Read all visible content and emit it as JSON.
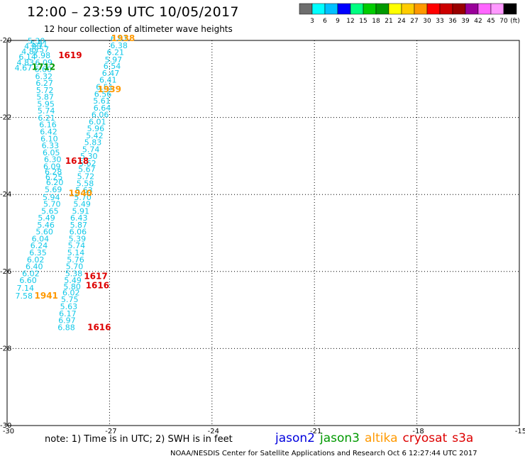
{
  "header": {
    "title": "12:00 – 23:59 UTC 10/05/2017",
    "subtitle": "12 hour collection of altimeter wave heights"
  },
  "colorbar": {
    "colors": [
      "#6e6e6e",
      "#00ffff",
      "#00c0ff",
      "#0000ff",
      "#00ff80",
      "#00cc00",
      "#009900",
      "#ffff00",
      "#ffcc00",
      "#ff9900",
      "#ff0000",
      "#cc0000",
      "#990000",
      "#990099",
      "#ff66ff",
      "#ff99ff",
      "#000000"
    ],
    "labels": [
      "3",
      "6",
      "9",
      "12",
      "15",
      "18",
      "21",
      "24",
      "27",
      "30",
      "33",
      "36",
      "39",
      "42",
      "45",
      "70"
    ],
    "unit": "(ft)"
  },
  "footer": {
    "note": "note:  1) Time is in UTC;  2) SWH is in feet",
    "credit": "NOAA/NESDIS Center for Satellite Applications and Research     Oct  6 12:27:44 UTC 2017"
  },
  "missions": [
    {
      "name": "jason2",
      "color": "#0000dd"
    },
    {
      "name": "jason3",
      "color": "#009900"
    },
    {
      "name": "altika",
      "color": "#ff9900"
    },
    {
      "name": "cryosat",
      "color": "#dd0000"
    },
    {
      "name": "s3a",
      "color": "#dd0000"
    }
  ],
  "chart_data": {
    "type": "scatter",
    "title": "12:00 – 23:59 UTC 10/05/2017",
    "xlim": [
      -30,
      -15
    ],
    "ylim": [
      -30,
      -20
    ],
    "x_ticks": [
      "-30",
      "-27",
      "-24",
      "-21",
      "-18",
      "-15"
    ],
    "y_ticks": [
      "-20",
      "-22",
      "-24",
      "-26",
      "-28",
      "-30"
    ],
    "grid": true,
    "point_color": "#11c8e8",
    "points": [
      {
        "x": -26.97,
        "y": -20.02,
        "label": "6.61"
      },
      {
        "x": -26.98,
        "y": -20.2,
        "label": "6.38"
      },
      {
        "x": -27.08,
        "y": -20.38,
        "label": "6.21"
      },
      {
        "x": -27.14,
        "y": -20.57,
        "label": "5.97"
      },
      {
        "x": -27.18,
        "y": -20.74,
        "label": "6.54"
      },
      {
        "x": -27.22,
        "y": -20.92,
        "label": "6.47"
      },
      {
        "x": -27.3,
        "y": -21.1,
        "label": "6.41"
      },
      {
        "x": -27.4,
        "y": -21.28,
        "label": "6.51"
      },
      {
        "x": -27.45,
        "y": -21.46,
        "label": "6.56"
      },
      {
        "x": -27.48,
        "y": -21.64,
        "label": "5.61"
      },
      {
        "x": -27.47,
        "y": -21.82,
        "label": "6.64"
      },
      {
        "x": -27.53,
        "y": -22.0,
        "label": "6.06"
      },
      {
        "x": -27.61,
        "y": -22.18,
        "label": "6.01"
      },
      {
        "x": -27.66,
        "y": -22.36,
        "label": "5.96"
      },
      {
        "x": -27.69,
        "y": -22.54,
        "label": "5.42"
      },
      {
        "x": -27.74,
        "y": -22.72,
        "label": "5.83"
      },
      {
        "x": -27.8,
        "y": -22.9,
        "label": "5.74"
      },
      {
        "x": -27.86,
        "y": -23.08,
        "label": "5.30"
      },
      {
        "x": -27.9,
        "y": -23.26,
        "label": "5.62"
      },
      {
        "x": -27.92,
        "y": -23.42,
        "label": "5.67"
      },
      {
        "x": -27.95,
        "y": -23.6,
        "label": "5.72"
      },
      {
        "x": -27.97,
        "y": -23.78,
        "label": "5.58"
      },
      {
        "x": -28.0,
        "y": -23.96,
        "label": "5.63"
      },
      {
        "x": -28.04,
        "y": -24.14,
        "label": "5.70"
      },
      {
        "x": -28.06,
        "y": -24.32,
        "label": "5.49"
      },
      {
        "x": -28.1,
        "y": -24.5,
        "label": "5.91"
      },
      {
        "x": -28.15,
        "y": -24.68,
        "label": "6.43"
      },
      {
        "x": -28.16,
        "y": -24.86,
        "label": "5.87"
      },
      {
        "x": -28.18,
        "y": -25.04,
        "label": "6.06"
      },
      {
        "x": -28.2,
        "y": -25.22,
        "label": "5.39"
      },
      {
        "x": -28.22,
        "y": -25.4,
        "label": "5.74"
      },
      {
        "x": -28.24,
        "y": -25.58,
        "label": "5.14"
      },
      {
        "x": -28.25,
        "y": -25.76,
        "label": "5.76"
      },
      {
        "x": -28.28,
        "y": -25.94,
        "label": "5.70"
      },
      {
        "x": -28.3,
        "y": -26.12,
        "label": "5.38"
      },
      {
        "x": -28.33,
        "y": -26.3,
        "label": "5.49"
      },
      {
        "x": -28.35,
        "y": -26.46,
        "label": "5.80"
      },
      {
        "x": -28.38,
        "y": -26.62,
        "label": "6.02"
      },
      {
        "x": -28.42,
        "y": -26.8,
        "label": "5.75"
      },
      {
        "x": -28.45,
        "y": -26.98,
        "label": "5.63"
      },
      {
        "x": -28.48,
        "y": -27.16,
        "label": "6.17"
      },
      {
        "x": -28.5,
        "y": -27.34,
        "label": "6.97"
      },
      {
        "x": -28.52,
        "y": -27.52,
        "label": "6.88"
      },
      {
        "x": -29.4,
        "y": -20.08,
        "label": "5.30"
      },
      {
        "x": -29.5,
        "y": -20.22,
        "label": "4.90"
      },
      {
        "x": -29.58,
        "y": -20.36,
        "label": "4.87"
      },
      {
        "x": -29.66,
        "y": -20.5,
        "label": "6.14"
      },
      {
        "x": -29.72,
        "y": -20.64,
        "label": "4.83"
      },
      {
        "x": -29.78,
        "y": -20.78,
        "label": "4.67"
      },
      {
        "x": -29.32,
        "y": -20.16,
        "label": "5.51"
      },
      {
        "x": -29.28,
        "y": -20.3,
        "label": "5.57"
      },
      {
        "x": -29.24,
        "y": -20.46,
        "label": "5.98"
      },
      {
        "x": -29.18,
        "y": -20.64,
        "label": "6.09"
      },
      {
        "x": -29.2,
        "y": -20.82,
        "label": "6.60"
      },
      {
        "x": -29.18,
        "y": -21.0,
        "label": "6.32"
      },
      {
        "x": -29.16,
        "y": -21.18,
        "label": "6.27"
      },
      {
        "x": -29.15,
        "y": -21.36,
        "label": "5.72"
      },
      {
        "x": -29.14,
        "y": -21.54,
        "label": "5.87"
      },
      {
        "x": -29.12,
        "y": -21.72,
        "label": "5.95"
      },
      {
        "x": -29.11,
        "y": -21.9,
        "label": "5.74"
      },
      {
        "x": -29.1,
        "y": -22.08,
        "label": "6.21"
      },
      {
        "x": -29.06,
        "y": -22.26,
        "label": "6.16"
      },
      {
        "x": -29.04,
        "y": -22.44,
        "label": "6.42"
      },
      {
        "x": -29.02,
        "y": -22.62,
        "label": "6.10"
      },
      {
        "x": -28.99,
        "y": -22.8,
        "label": "6.33"
      },
      {
        "x": -28.96,
        "y": -22.98,
        "label": "6.05"
      },
      {
        "x": -28.92,
        "y": -23.16,
        "label": "6.30"
      },
      {
        "x": -28.94,
        "y": -23.34,
        "label": "6.09"
      },
      {
        "x": -28.9,
        "y": -23.48,
        "label": "6.28"
      },
      {
        "x": -28.88,
        "y": -23.62,
        "label": "6.25"
      },
      {
        "x": -28.86,
        "y": -23.76,
        "label": "6.20"
      },
      {
        "x": -28.9,
        "y": -23.94,
        "label": "5.69"
      },
      {
        "x": -28.96,
        "y": -24.14,
        "label": "5.94"
      },
      {
        "x": -28.94,
        "y": -24.32,
        "label": "5.70"
      },
      {
        "x": -29.0,
        "y": -24.5,
        "label": "5.65"
      },
      {
        "x": -29.1,
        "y": -24.68,
        "label": "5.49"
      },
      {
        "x": -29.12,
        "y": -24.86,
        "label": "5.46"
      },
      {
        "x": -29.16,
        "y": -25.04,
        "label": "5.60"
      },
      {
        "x": -29.28,
        "y": -25.22,
        "label": "6.04"
      },
      {
        "x": -29.32,
        "y": -25.4,
        "label": "6.24"
      },
      {
        "x": -29.35,
        "y": -25.58,
        "label": "6.35"
      },
      {
        "x": -29.42,
        "y": -25.76,
        "label": "6.02"
      },
      {
        "x": -29.46,
        "y": -25.94,
        "label": "6.40"
      },
      {
        "x": -29.56,
        "y": -26.12,
        "label": "6.02"
      },
      {
        "x": -29.64,
        "y": -26.3,
        "label": "6.60"
      },
      {
        "x": -29.72,
        "y": -26.5,
        "label": "7.14"
      },
      {
        "x": -29.76,
        "y": -26.7,
        "label": "7.58"
      }
    ],
    "track_labels": [
      {
        "x": -26.95,
        "y": -20.02,
        "label": "1938",
        "color": "#ff9900"
      },
      {
        "x": -28.5,
        "y": -20.46,
        "label": "1619",
        "color": "#dd0000"
      },
      {
        "x": -29.28,
        "y": -20.76,
        "label": "1712",
        "color": "#009900"
      },
      {
        "x": -27.35,
        "y": -21.34,
        "label": "1939",
        "color": "#ff9900"
      },
      {
        "x": -28.3,
        "y": -23.2,
        "label": "1618",
        "color": "#dd0000"
      },
      {
        "x": -28.2,
        "y": -24.04,
        "label": "1940",
        "color": "#ff9900"
      },
      {
        "x": -27.75,
        "y": -26.2,
        "label": "1617",
        "color": "#dd0000"
      },
      {
        "x": -27.7,
        "y": -26.44,
        "label": "1616",
        "color": "#dd0000"
      },
      {
        "x": -29.2,
        "y": -26.7,
        "label": "1941",
        "color": "#ff9900"
      },
      {
        "x": -27.65,
        "y": -27.52,
        "label": "1616",
        "color": "#dd0000"
      }
    ]
  }
}
